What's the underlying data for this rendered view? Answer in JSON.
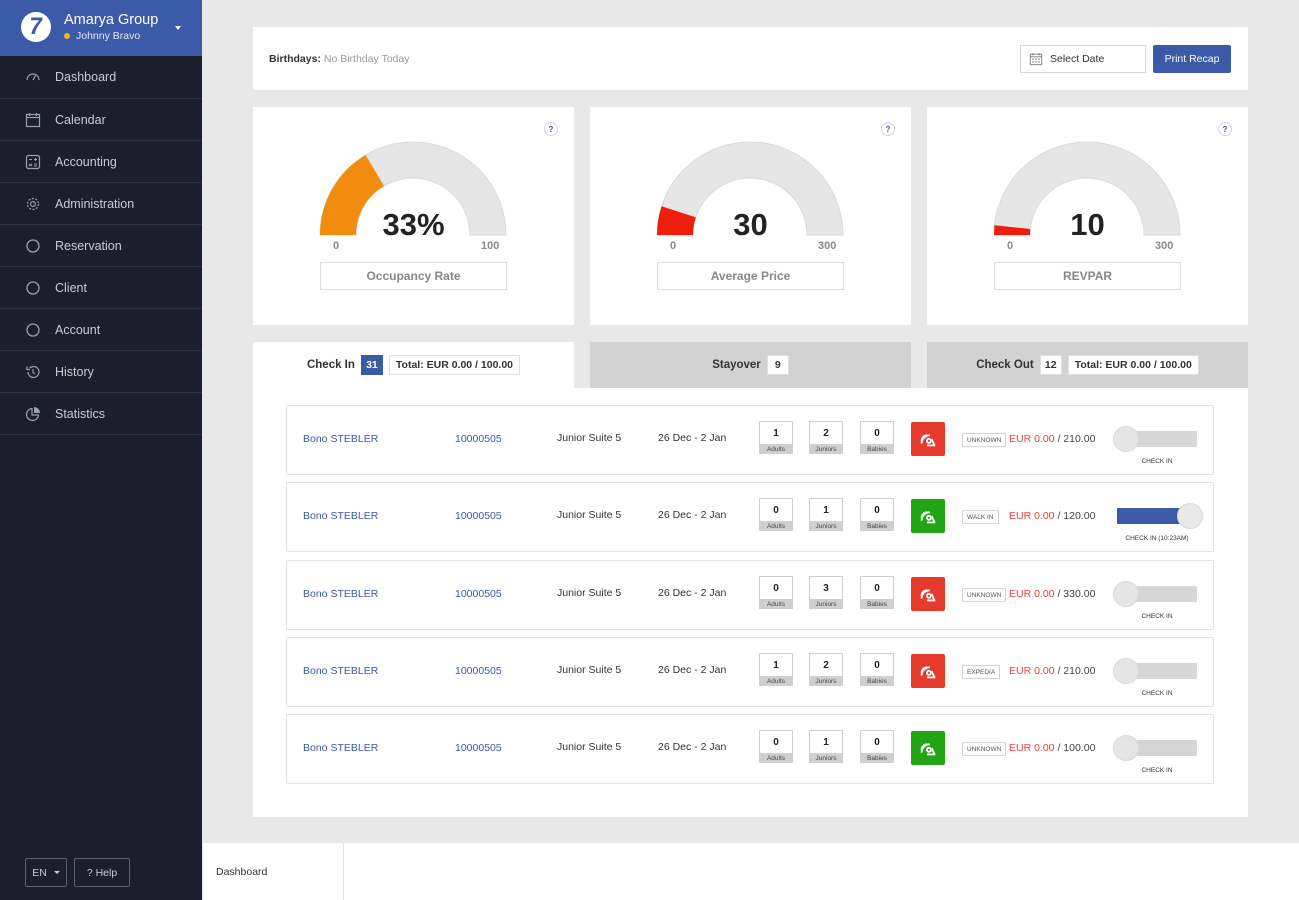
{
  "brand": {
    "company": "Amarya Group",
    "user": "Johnny Bravo",
    "logo_char": "7"
  },
  "nav": [
    {
      "label": "Dashboard",
      "icon": "dashboard-icon"
    },
    {
      "label": "Calendar",
      "icon": "calendar-icon"
    },
    {
      "label": "Accounting",
      "icon": "accounting-icon"
    },
    {
      "label": "Administration",
      "icon": "gear-icon"
    },
    {
      "label": "Reservation",
      "icon": "circle-icon"
    },
    {
      "label": "Client",
      "icon": "circle-icon"
    },
    {
      "label": "Account",
      "icon": "circle-icon"
    },
    {
      "label": "History",
      "icon": "history-icon"
    },
    {
      "label": "Statistics",
      "icon": "pie-chart-icon"
    }
  ],
  "footer": {
    "lang": "EN",
    "help": "? Help"
  },
  "topbar": {
    "birthdays_label": "Birthdays:",
    "birthdays_value": "No Birthday Today",
    "date_placeholder": "Select Date",
    "print_label": "Print Recap"
  },
  "gauges": [
    {
      "label": "Occupancy Rate",
      "value_text": "33%",
      "value": 33,
      "min": "0",
      "max": "100",
      "range": 100,
      "color": "#f28c0f"
    },
    {
      "label": "Average Price",
      "value_text": "30",
      "value": 30,
      "min": "0",
      "max": "300",
      "range": 300,
      "color": "#ef1e0c"
    },
    {
      "label": "REVPAR",
      "value_text": "10",
      "value": 10,
      "min": "0",
      "max": "300",
      "range": 300,
      "color": "#ef1e0c"
    }
  ],
  "help_char": "?",
  "tabs": {
    "checkin": {
      "label": "Check In",
      "count": "31",
      "total": "Total: EUR 0.00 / 100.00"
    },
    "stayover": {
      "label": "Stayover",
      "count": "9"
    },
    "checkout": {
      "label": "Check Out",
      "count": "12",
      "total": "Total: EUR 0.00 / 100.00"
    }
  },
  "guest_labels": {
    "adults": "Adults",
    "juniors": "Juniors",
    "babies": "Babies"
  },
  "rows": [
    {
      "name": "Bono STEBLER",
      "res": "10000505",
      "room": "Junior Suite 5",
      "dates": "26 Dec - 2 Jan",
      "adults": "1",
      "juniors": "2",
      "babies": "0",
      "clean": "dirty",
      "clean_color": "#e53a2c",
      "source": "UNKNOWN",
      "paid": "EUR 0.00",
      "total": "/ 210.00",
      "checked_in": false,
      "status": "CHECK IN"
    },
    {
      "name": "Bono STEBLER",
      "res": "10000505",
      "room": "Junior Suite 5",
      "dates": "26 Dec - 2 Jan",
      "adults": "0",
      "juniors": "1",
      "babies": "0",
      "clean": "clean",
      "clean_color": "#21a515",
      "source": "WALK IN",
      "paid": "EUR 0.00",
      "total": "/ 120.00",
      "checked_in": true,
      "status": "CHECK IN (10:23AM)"
    },
    {
      "name": "Bono STEBLER",
      "res": "10000505",
      "room": "Junior Suite 5",
      "dates": "26 Dec - 2 Jan",
      "adults": "0",
      "juniors": "3",
      "babies": "0",
      "clean": "dirty",
      "clean_color": "#e53a2c",
      "source": "UNKNOWN",
      "paid": "EUR 0.00",
      "total": "/ 330.00",
      "checked_in": false,
      "status": "CHECK IN"
    },
    {
      "name": "Bono STEBLER",
      "res": "10000505",
      "room": "Junior Suite 5",
      "dates": "26 Dec - 2 Jan",
      "adults": "1",
      "juniors": "2",
      "babies": "0",
      "clean": "dirty",
      "clean_color": "#e53a2c",
      "source": "EXPEDIA",
      "paid": "EUR 0.00",
      "total": "/ 210.00",
      "checked_in": false,
      "status": "CHECK IN"
    },
    {
      "name": "Bono STEBLER",
      "res": "10000505",
      "room": "Junior Suite 5",
      "dates": "26 Dec - 2 Jan",
      "adults": "0",
      "juniors": "1",
      "babies": "0",
      "clean": "clean",
      "clean_color": "#21a515",
      "source": "UNKNOWN",
      "paid": "EUR 0.00",
      "total": "/ 100.00",
      "checked_in": false,
      "status": "CHECK IN"
    }
  ],
  "bottom_tab": "Dashboard"
}
